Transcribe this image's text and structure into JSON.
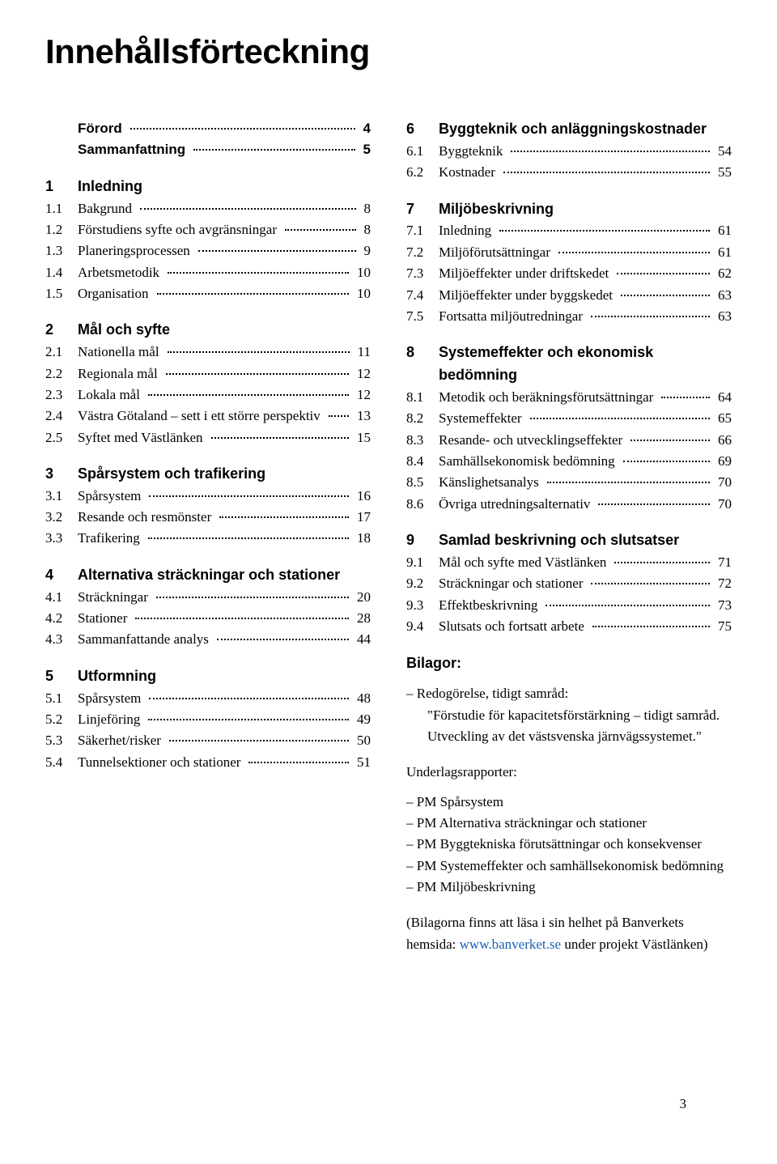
{
  "title": "Innehållsförteckning",
  "pageNumber": "3",
  "link": {
    "text": "www.banverket.se",
    "color": "#1a5fb4"
  },
  "leftSections": [
    {
      "head": null,
      "rows": [
        {
          "num": "",
          "label": "Förord",
          "page": "4",
          "bold": true
        },
        {
          "num": "",
          "label": "Sammanfattning",
          "page": "5",
          "bold": true
        }
      ]
    },
    {
      "head": {
        "num": "1",
        "label": "Inledning"
      },
      "rows": [
        {
          "num": "1.1",
          "label": "Bakgrund",
          "page": "8"
        },
        {
          "num": "1.2",
          "label": "Förstudiens syfte och avgränsningar",
          "page": "8"
        },
        {
          "num": "1.3",
          "label": "Planeringsprocessen",
          "page": "9"
        },
        {
          "num": "1.4",
          "label": "Arbetsmetodik",
          "page": "10"
        },
        {
          "num": "1.5",
          "label": "Organisation",
          "page": "10"
        }
      ]
    },
    {
      "head": {
        "num": "2",
        "label": "Mål och syfte"
      },
      "rows": [
        {
          "num": "2.1",
          "label": "Nationella mål",
          "page": "11"
        },
        {
          "num": "2.2",
          "label": "Regionala mål",
          "page": "12"
        },
        {
          "num": "2.3",
          "label": "Lokala mål",
          "page": "12"
        },
        {
          "num": "2.4",
          "label": "Västra Götaland – sett i ett större perspektiv",
          "page": "13"
        },
        {
          "num": "2.5",
          "label": "Syftet med Västlänken",
          "page": "15"
        }
      ]
    },
    {
      "head": {
        "num": "3",
        "label": "Spårsystem och trafikering"
      },
      "rows": [
        {
          "num": "3.1",
          "label": "Spårsystem",
          "page": "16"
        },
        {
          "num": "3.2",
          "label": "Resande och resmönster",
          "page": "17"
        },
        {
          "num": "3.3",
          "label": "Trafikering",
          "page": "18"
        }
      ]
    },
    {
      "head": {
        "num": "4",
        "label": "Alternativa sträckningar och stationer"
      },
      "rows": [
        {
          "num": "4.1",
          "label": "Sträckningar",
          "page": "20"
        },
        {
          "num": "4.2",
          "label": "Stationer",
          "page": "28"
        },
        {
          "num": "4.3",
          "label": "Sammanfattande analys",
          "page": "44"
        }
      ]
    },
    {
      "head": {
        "num": "5",
        "label": "Utformning"
      },
      "rows": [
        {
          "num": "5.1",
          "label": "Spårsystem",
          "page": "48"
        },
        {
          "num": "5.2",
          "label": "Linjeföring",
          "page": "49"
        },
        {
          "num": "5.3",
          "label": "Säkerhet/risker",
          "page": "50"
        },
        {
          "num": "5.4",
          "label": "Tunnelsektioner och stationer",
          "page": "51"
        }
      ]
    }
  ],
  "rightSections": [
    {
      "head": {
        "num": "6",
        "label": "Byggteknik och anläggningskostnader"
      },
      "rows": [
        {
          "num": "6.1",
          "label": "Byggteknik",
          "page": "54"
        },
        {
          "num": "6.2",
          "label": "Kostnader",
          "page": "55"
        }
      ]
    },
    {
      "head": {
        "num": "7",
        "label": "Miljöbeskrivning"
      },
      "rows": [
        {
          "num": "7.1",
          "label": "Inledning",
          "page": "61"
        },
        {
          "num": "7.2",
          "label": "Miljöförutsättningar",
          "page": "61"
        },
        {
          "num": "7.3",
          "label": "Miljöeffekter under driftskedet",
          "page": "62"
        },
        {
          "num": "7.4",
          "label": "Miljöeffekter under byggskedet",
          "page": "63"
        },
        {
          "num": "7.5",
          "label": "Fortsatta miljöutredningar",
          "page": "63"
        }
      ]
    },
    {
      "head": {
        "num": "8",
        "label": "Systemeffekter och ekonomisk bedömning"
      },
      "rows": [
        {
          "num": "8.1",
          "label": "Metodik och beräkningsförutsättningar",
          "page": "64"
        },
        {
          "num": "8.2",
          "label": "Systemeffekter",
          "page": "65"
        },
        {
          "num": "8.3",
          "label": "Resande- och utvecklingseffekter",
          "page": "66"
        },
        {
          "num": "8.4",
          "label": "Samhällsekonomisk bedömning",
          "page": "69"
        },
        {
          "num": "8.5",
          "label": "Känslighetsanalys",
          "page": "70"
        },
        {
          "num": "8.6",
          "label": "Övriga utredningsalternativ",
          "page": "70"
        }
      ]
    },
    {
      "head": {
        "num": "9",
        "label": "Samlad beskrivning och slutsatser"
      },
      "rows": [
        {
          "num": "9.1",
          "label": "Mål och syfte med Västlänken",
          "page": "71"
        },
        {
          "num": "9.2",
          "label": "Sträckningar och stationer",
          "page": "72"
        },
        {
          "num": "9.3",
          "label": "Effektbeskrivning",
          "page": "73"
        },
        {
          "num": "9.4",
          "label": "Slutsats och fortsatt arbete",
          "page": "75"
        }
      ]
    }
  ],
  "bilagor": {
    "heading": "Bilagor:",
    "group1": {
      "lead": "– Redogörelse, tidigt samråd:",
      "quote1": "\"Förstudie för kapacitetsförstärkning – tidigt samråd.",
      "quote2": "Utveckling av det västsvenska järnvägssystemet.\""
    },
    "sub": "Underlagsrapporter:",
    "pmItems": [
      "– PM Spårsystem",
      "– PM Alternativa sträckningar och stationer",
      "– PM Byggtekniska förutsättningar och konsekvenser",
      "– PM Systemeffekter och samhällsekonomisk bedömning",
      "– PM Miljöbeskrivning"
    ],
    "footnote_pre": "(Bilagorna finns att läsa i sin helhet på Banverkets hemsida:",
    "footnote_post": " under projekt Västlänken)"
  }
}
